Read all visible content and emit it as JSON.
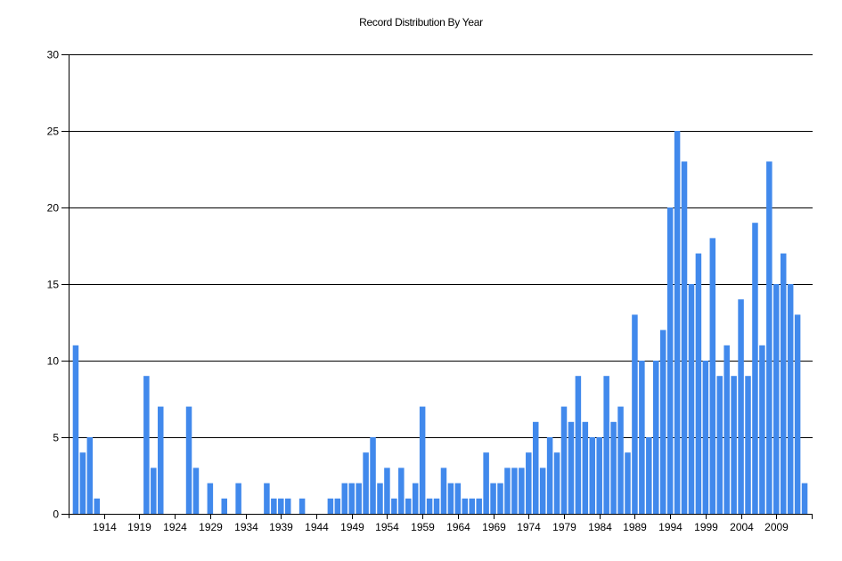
{
  "chart_data": {
    "type": "bar",
    "title": "Record Distribution By Year",
    "xlabel": "",
    "ylabel": "",
    "ylim": [
      0,
      30
    ],
    "yticks": [
      0,
      5,
      10,
      15,
      20,
      25,
      30
    ],
    "xticks": [
      1914,
      1919,
      1924,
      1929,
      1934,
      1939,
      1944,
      1949,
      1954,
      1959,
      1964,
      1969,
      1974,
      1979,
      1984,
      1989,
      1994,
      1999,
      2004,
      2009
    ],
    "xrange": [
      1909,
      2014
    ],
    "grid": "horizontal",
    "legend": null,
    "bar_color": "#4189EC",
    "categories": [
      1910,
      1911,
      1912,
      1913,
      1914,
      1915,
      1916,
      1917,
      1918,
      1919,
      1920,
      1921,
      1922,
      1923,
      1924,
      1925,
      1926,
      1927,
      1928,
      1929,
      1930,
      1931,
      1932,
      1933,
      1934,
      1935,
      1936,
      1937,
      1938,
      1939,
      1940,
      1941,
      1942,
      1943,
      1944,
      1945,
      1946,
      1947,
      1948,
      1949,
      1950,
      1951,
      1952,
      1953,
      1954,
      1955,
      1956,
      1957,
      1958,
      1959,
      1960,
      1961,
      1962,
      1963,
      1964,
      1965,
      1966,
      1967,
      1968,
      1969,
      1970,
      1971,
      1972,
      1973,
      1974,
      1975,
      1976,
      1977,
      1978,
      1979,
      1980,
      1981,
      1982,
      1983,
      1984,
      1985,
      1986,
      1987,
      1988,
      1989,
      1990,
      1991,
      1992,
      1993,
      1994,
      1995,
      1996,
      1997,
      1998,
      1999,
      2000,
      2001,
      2002,
      2003,
      2004,
      2005,
      2006,
      2007,
      2008,
      2009,
      2010,
      2011,
      2012,
      2013
    ],
    "values": [
      11,
      4,
      5,
      1,
      0,
      0,
      0,
      0,
      0,
      0,
      9,
      3,
      7,
      0,
      0,
      0,
      7,
      3,
      0,
      2,
      0,
      1,
      0,
      2,
      0,
      0,
      0,
      2,
      1,
      1,
      1,
      0,
      1,
      0,
      0,
      0,
      1,
      1,
      2,
      2,
      2,
      4,
      5,
      2,
      3,
      1,
      3,
      1,
      2,
      7,
      1,
      1,
      3,
      2,
      2,
      1,
      1,
      1,
      4,
      2,
      2,
      3,
      3,
      3,
      4,
      6,
      3,
      5,
      4,
      7,
      6,
      9,
      6,
      5,
      5,
      9,
      6,
      7,
      4,
      13,
      10,
      5,
      10,
      12,
      20,
      25,
      23,
      15,
      17,
      10,
      18,
      9,
      11,
      9,
      14,
      9,
      19,
      11,
      23,
      15,
      17,
      15,
      13,
      2
    ]
  }
}
